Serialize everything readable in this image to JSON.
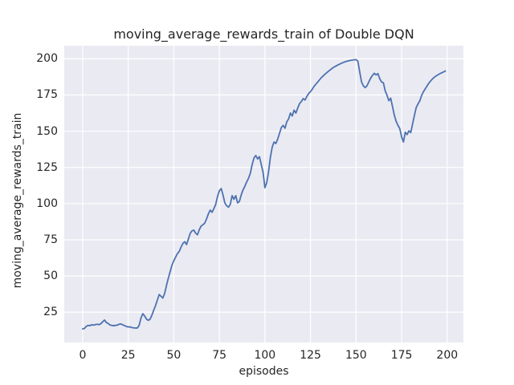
{
  "chart_data": {
    "type": "line",
    "title": "moving_average_rewards_train of Double DQN",
    "xlabel": "episodes",
    "ylabel": "moving_average_rewards_train",
    "grid": true,
    "legend": "none",
    "plot_bg_color": "#EAEAF2",
    "grid_color": "#FFFFFF",
    "figure_bg_color": "#FFFFFF",
    "text_color": "#262626",
    "xlim": [
      -10.1,
      208.9
    ],
    "ylim": [
      4.1,
      209.0
    ],
    "xticks": [
      0,
      25,
      50,
      75,
      100,
      125,
      150,
      175,
      200
    ],
    "yticks": [
      25,
      50,
      75,
      100,
      125,
      150,
      175,
      200
    ],
    "x_start": 0,
    "x_step": 1,
    "series": [
      {
        "name": "moving_average_rewards_train",
        "color": "#4C72B0",
        "line_width": 1.8,
        "values": [
          13.5,
          13.8,
          15.3,
          15.9,
          15.7,
          16.4,
          16.1,
          16.5,
          16.7,
          16.4,
          17.1,
          18.4,
          19.6,
          17.9,
          17.2,
          16.2,
          15.9,
          15.7,
          15.9,
          16.1,
          16.7,
          16.9,
          16.3,
          15.7,
          15.2,
          14.8,
          14.9,
          14.4,
          14.2,
          14.1,
          14.1,
          15.9,
          21,
          24,
          22.4,
          20.3,
          19.4,
          20.2,
          23,
          26.5,
          29.6,
          33.5,
          37.2,
          36,
          34.8,
          38,
          43.5,
          48.5,
          53,
          57.5,
          60.5,
          63,
          65.5,
          67,
          70,
          72.5,
          73.7,
          71.7,
          75.5,
          79.5,
          81.2,
          81.7,
          79.5,
          78.5,
          82,
          84.5,
          85.4,
          86.5,
          89.5,
          93,
          95.5,
          94,
          96.5,
          99.5,
          105,
          108.8,
          110.4,
          106,
          100.5,
          98.5,
          97.5,
          99.5,
          105.5,
          103,
          105.5,
          100.5,
          101.5,
          106,
          109.5,
          112,
          115,
          117.5,
          121,
          127,
          131.5,
          133.2,
          130.8,
          132.4,
          127,
          121.5,
          111,
          114.5,
          122,
          132,
          139,
          142.5,
          141.5,
          144.5,
          148.5,
          152.5,
          154,
          152,
          156.5,
          158.5,
          162.5,
          160.5,
          164.5,
          162.5,
          166,
          169,
          170.5,
          172.5,
          171.5,
          174,
          176,
          177.3,
          179,
          181,
          182.5,
          184,
          185.5,
          187,
          188.2,
          189.4,
          190.5,
          191.5,
          192.5,
          193.5,
          194.3,
          195,
          195.7,
          196.3,
          196.9,
          197.4,
          197.9,
          198.3,
          198.6,
          198.9,
          199.1,
          199.3,
          199.4,
          198.3,
          191,
          184,
          181.3,
          180.1,
          181.3,
          184,
          186.6,
          188.5,
          190,
          188.8,
          189.8,
          186.2,
          184,
          183.4,
          177.8,
          174.8,
          171,
          172.8,
          167,
          161,
          156.8,
          154,
          151.8,
          146,
          142.5,
          149.3,
          147.6,
          150.2,
          149,
          154.8,
          160.8,
          166.3,
          168.8,
          171,
          174.8,
          177.3,
          179.3,
          181.3,
          183.3,
          184.8,
          186.2,
          187.3,
          188.2,
          189,
          189.7,
          190.3,
          190.9,
          191.5
        ]
      }
    ]
  }
}
